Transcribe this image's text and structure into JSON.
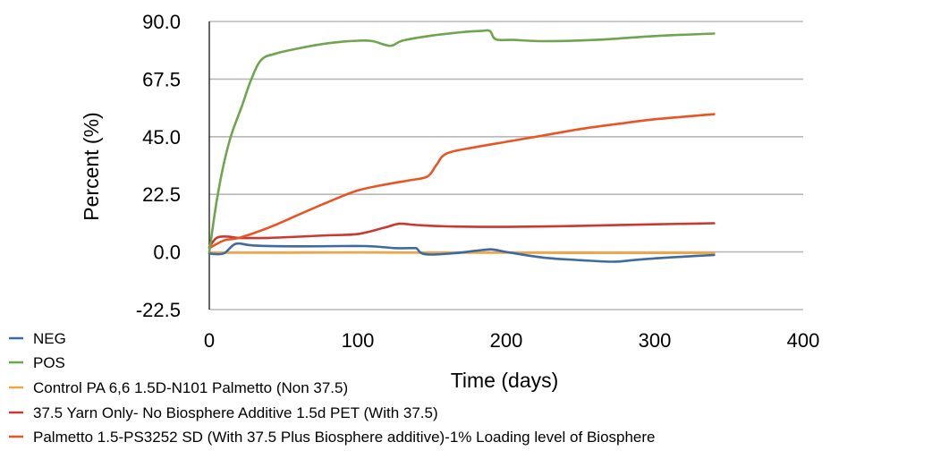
{
  "chart_data": {
    "type": "line",
    "title": "",
    "xlabel": "Time (days)",
    "ylabel": "Percent (%)",
    "xlim": [
      0,
      400
    ],
    "ylim": [
      -22.5,
      90
    ],
    "x_ticks": [
      "0",
      "100",
      "200",
      "300",
      "400"
    ],
    "y_ticks": [
      "90.0",
      "67.5",
      "45.0",
      "22.5",
      "0.0",
      "-22.5"
    ],
    "x_tick_values": [
      0,
      100,
      200,
      300,
      400
    ],
    "y_tick_values": [
      90,
      67.5,
      45,
      22.5,
      0,
      -22.5
    ],
    "grid": "horizontal",
    "legend_position": "bottom-left",
    "series": [
      {
        "name": "NEG",
        "color": "#3d6aa0",
        "points": [
          [
            0,
            -0.5
          ],
          [
            3,
            -0.8
          ],
          [
            10,
            -0.5
          ],
          [
            18,
            3.2
          ],
          [
            30,
            2.5
          ],
          [
            60,
            2.2
          ],
          [
            105,
            2.3
          ],
          [
            125,
            1.5
          ],
          [
            138,
            1.5
          ],
          [
            140,
            1.2
          ],
          [
            143,
            -0.5
          ],
          [
            150,
            -1.0
          ],
          [
            165,
            -0.5
          ],
          [
            180,
            0.5
          ],
          [
            190,
            1.0
          ],
          [
            200,
            0
          ],
          [
            225,
            -2.2
          ],
          [
            250,
            -3.2
          ],
          [
            272,
            -3.8
          ],
          [
            285,
            -3.2
          ],
          [
            300,
            -2.5
          ],
          [
            320,
            -1.8
          ],
          [
            340,
            -1.2
          ]
        ]
      },
      {
        "name": "POS",
        "color": "#6ea54e",
        "points": [
          [
            0,
            0
          ],
          [
            5,
            20
          ],
          [
            10,
            35
          ],
          [
            15,
            46
          ],
          [
            22,
            57
          ],
          [
            28,
            67
          ],
          [
            35,
            75
          ],
          [
            45,
            77.5
          ],
          [
            60,
            79.5
          ],
          [
            80,
            81.5
          ],
          [
            100,
            82.5
          ],
          [
            110,
            82.3
          ],
          [
            122,
            80.5
          ],
          [
            130,
            82.5
          ],
          [
            150,
            84.5
          ],
          [
            170,
            85.8
          ],
          [
            183,
            86.3
          ],
          [
            189,
            86.3
          ],
          [
            193,
            83
          ],
          [
            205,
            82.8
          ],
          [
            225,
            82.3
          ],
          [
            260,
            82.8
          ],
          [
            300,
            84.3
          ],
          [
            340,
            85.3
          ]
        ]
      },
      {
        "name": "Control PA 6,6 1.5D-N101 Palmetto (Non 37.5)",
        "color": "#f0a640",
        "points": [
          [
            0,
            -0.3
          ],
          [
            50,
            -0.3
          ],
          [
            100,
            -0.2
          ],
          [
            150,
            -0.3
          ],
          [
            200,
            -0.3
          ],
          [
            250,
            -0.4
          ],
          [
            300,
            -0.4
          ],
          [
            340,
            -0.4
          ]
        ]
      },
      {
        "name": "37.5 Yarn Only- No Biosphere Additive 1.5d PET (With 37.5)",
        "color": "#c9392f",
        "points": [
          [
            0,
            2
          ],
          [
            5,
            5.5
          ],
          [
            12,
            6.0
          ],
          [
            20,
            5.5
          ],
          [
            40,
            5.5
          ],
          [
            80,
            6.5
          ],
          [
            100,
            7.0
          ],
          [
            118,
            9.5
          ],
          [
            128,
            11.0
          ],
          [
            140,
            10.5
          ],
          [
            160,
            10.0
          ],
          [
            200,
            9.8
          ],
          [
            250,
            10.2
          ],
          [
            300,
            10.8
          ],
          [
            340,
            11.2
          ]
        ]
      },
      {
        "name": "Palmetto 1.5-PS3252 SD (With 37.5 Plus Biosphere additive)-1% Loading level of Biosphere",
        "color": "#ea5422",
        "points": [
          [
            0,
            1.5
          ],
          [
            10,
            4.5
          ],
          [
            20,
            5.5
          ],
          [
            40,
            9.5
          ],
          [
            60,
            14.5
          ],
          [
            80,
            19.5
          ],
          [
            100,
            24.0
          ],
          [
            120,
            26.5
          ],
          [
            135,
            28.0
          ],
          [
            147,
            29.5
          ],
          [
            153,
            34
          ],
          [
            160,
            38.5
          ],
          [
            180,
            41
          ],
          [
            200,
            43
          ],
          [
            225,
            45.5
          ],
          [
            250,
            48
          ],
          [
            275,
            50
          ],
          [
            300,
            51.8
          ],
          [
            340,
            53.8
          ]
        ]
      }
    ]
  }
}
